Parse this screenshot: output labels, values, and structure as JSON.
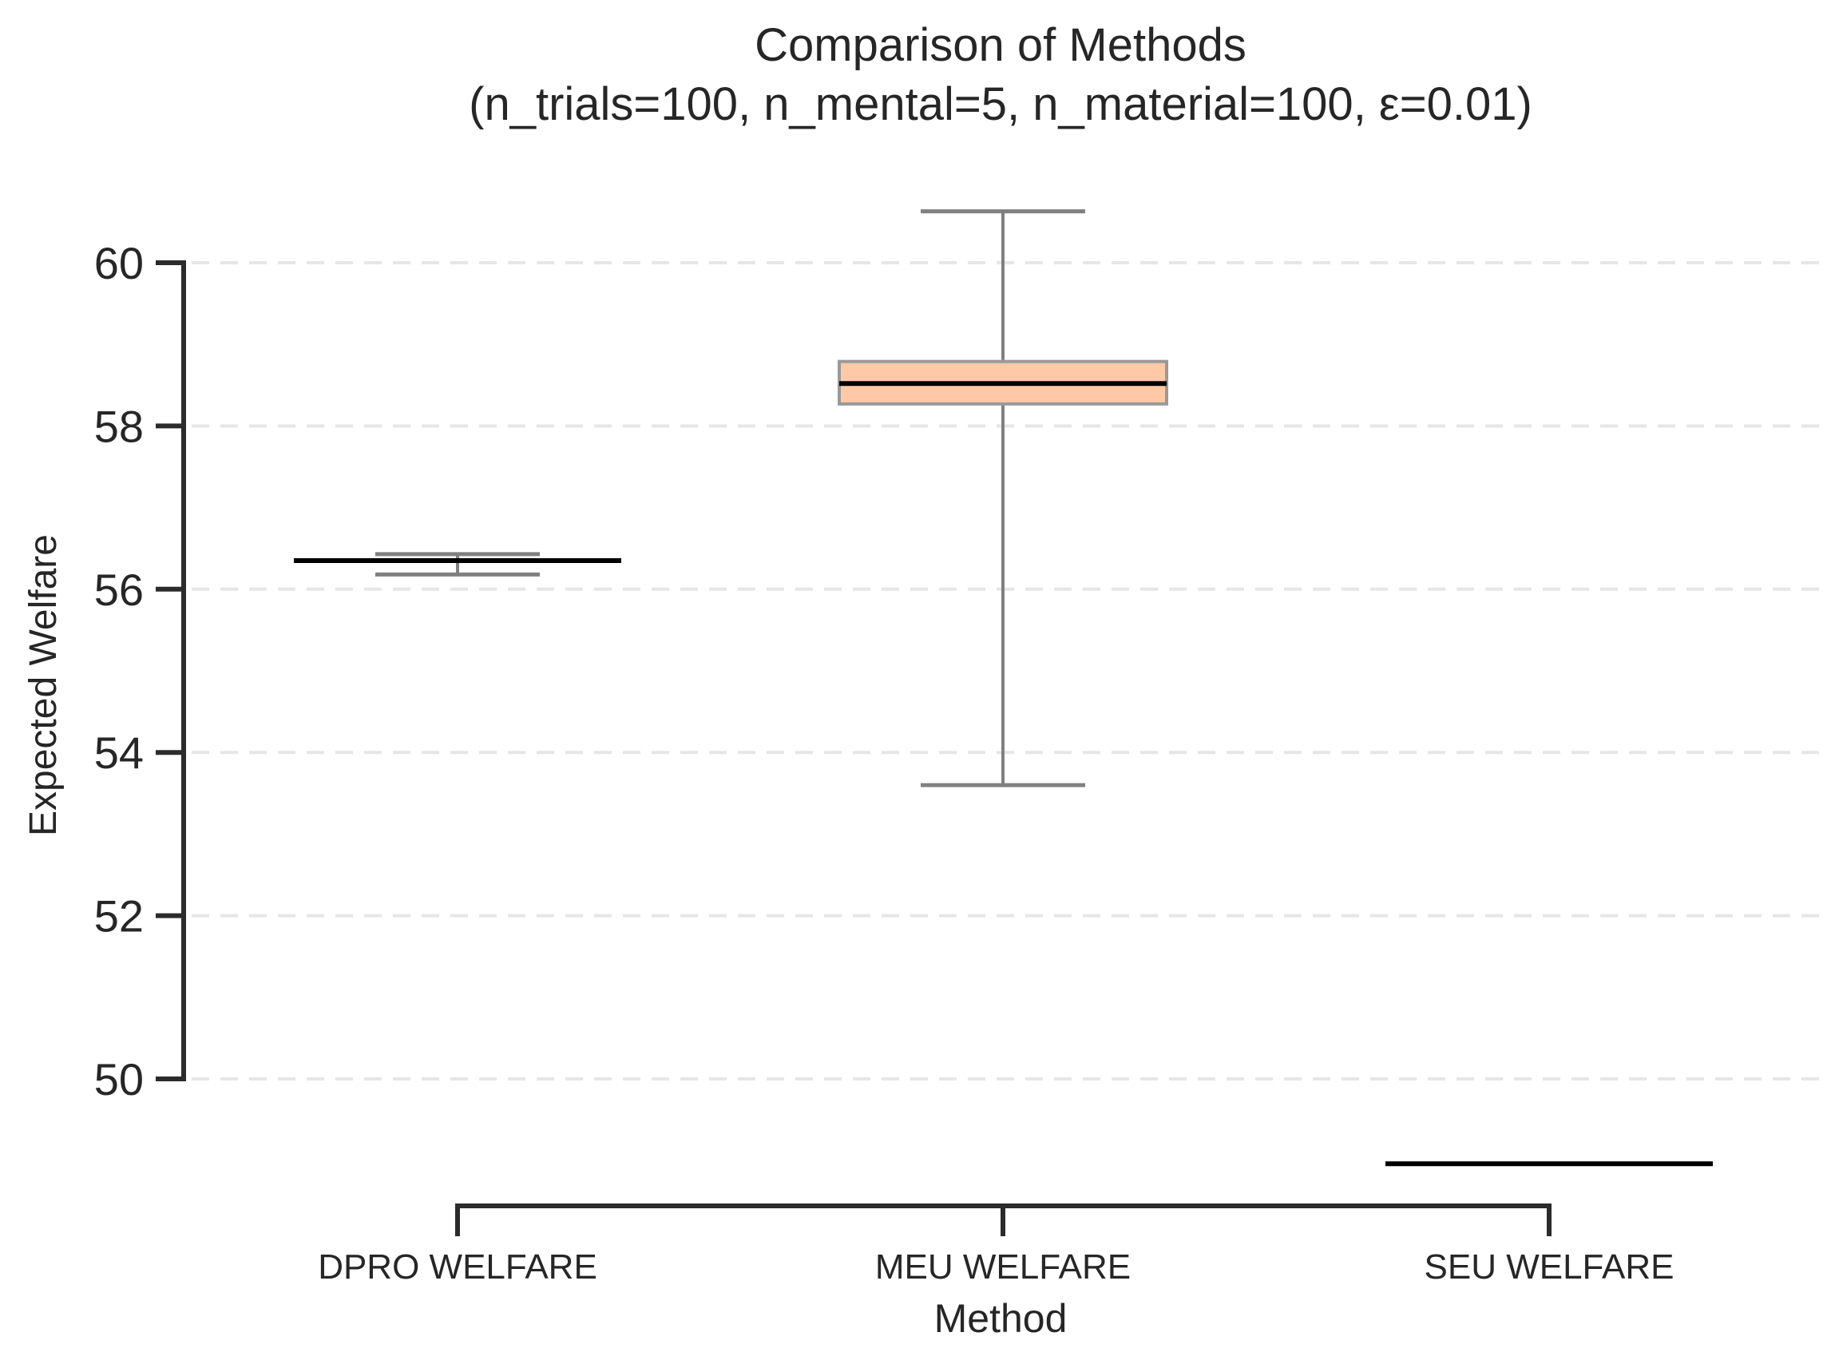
{
  "chart_data": {
    "type": "box",
    "title": "Comparison of Methods",
    "subtitle": "(n_trials=100, n_mental=5, n_material=100, ε=0.01)",
    "xlabel": "Method",
    "ylabel": "Expected Welfare",
    "categories": [
      "DPRO WELFARE",
      "MEU WELFARE",
      "SEU WELFARE"
    ],
    "yticks": [
      "50",
      "52",
      "54",
      "56",
      "58",
      "60"
    ],
    "ylim": [
      48.8,
      61.3
    ],
    "grid": "y-dashed",
    "boxes": [
      {
        "category": "DPRO WELFARE",
        "whisker_low": 56.18,
        "q1": 56.33,
        "median": 56.35,
        "q3": 56.37,
        "whisker_high": 56.43,
        "fill": "#ffffff"
      },
      {
        "category": "MEU WELFARE",
        "whisker_low": 53.6,
        "q1": 58.27,
        "median": 58.52,
        "q3": 58.79,
        "whisker_high": 60.63,
        "fill": "#ffc9a8"
      },
      {
        "category": "SEU WELFARE",
        "whisker_low": 48.96,
        "q1": 48.96,
        "median": 48.96,
        "q3": 48.96,
        "whisker_high": 48.96,
        "fill": "#ffffff"
      }
    ],
    "colors": {
      "axis": "#2b2b2b",
      "whisker": "#808080",
      "median": "#000000",
      "grid": "#e6e6e6",
      "box_edge": "#999999"
    }
  }
}
